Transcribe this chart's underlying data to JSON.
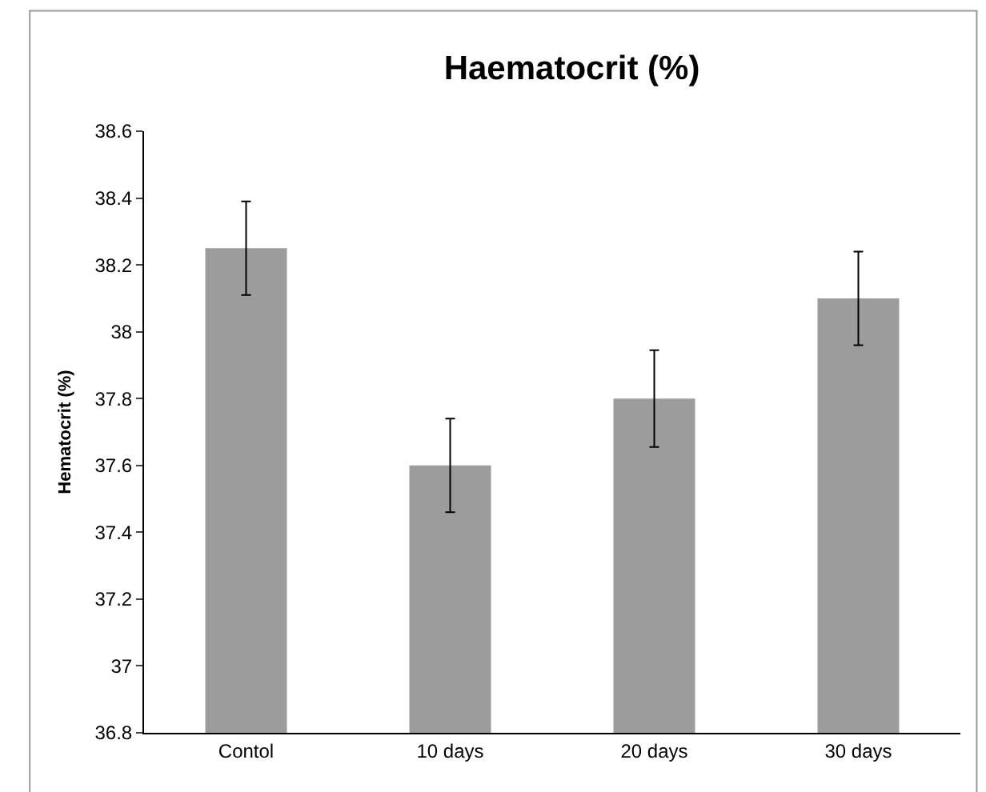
{
  "chart_data": {
    "type": "bar",
    "title": "Haematocrit (%)",
    "ylabel": "Hematocrit (%)",
    "categories": [
      "Contol",
      "10 days",
      "20 days",
      "30 days"
    ],
    "values": [
      38.25,
      37.6,
      37.8,
      38.1
    ],
    "errors": [
      0.14,
      0.14,
      0.145,
      0.14
    ],
    "color": "#9c9c9c",
    "ylim": [
      36.8,
      38.6
    ],
    "yticks": [
      36.8,
      37,
      37.2,
      37.4,
      37.6,
      37.8,
      38,
      38.2,
      38.4,
      38.6
    ],
    "grid": false,
    "legend": false
  }
}
